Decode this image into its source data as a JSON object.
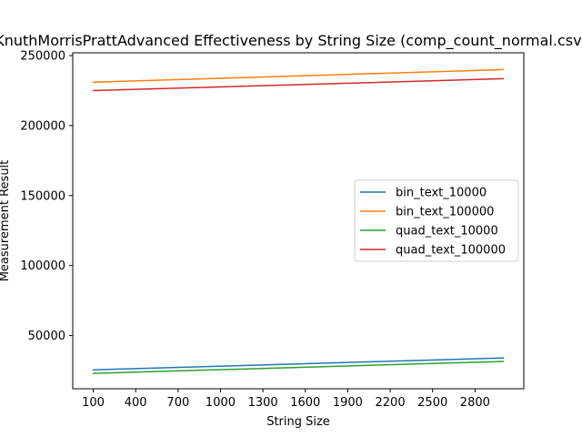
{
  "chart_data": {
    "type": "line",
    "title": "KnuthMorrisPrattAdvanced Effectiveness by String Size (comp_count_normal.csv)",
    "xlabel": "String Size",
    "ylabel": "Measurement Result",
    "x_ticks": [
      "100",
      "400",
      "700",
      "1000",
      "1300",
      "1600",
      "1900",
      "2200",
      "2500",
      "2800"
    ],
    "y_ticks": [
      "50000",
      "100000",
      "150000",
      "200000",
      "250000"
    ],
    "xlim": [
      -45,
      3145
    ],
    "ylim": [
      12000,
      252000
    ],
    "legend_position": "center-right",
    "series": [
      {
        "name": "bin_text_10000",
        "color": "#1f77b4",
        "x": [
          100,
          3000
        ],
        "values": [
          25500,
          34000
        ]
      },
      {
        "name": "bin_text_100000",
        "color": "#ff7f0e",
        "x": [
          100,
          3000
        ],
        "values": [
          231000,
          240000
        ]
      },
      {
        "name": "quad_text_10000",
        "color": "#2ca02c",
        "x": [
          100,
          3000
        ],
        "values": [
          23000,
          31500
        ]
      },
      {
        "name": "quad_text_100000",
        "color": "#d62728",
        "x": [
          100,
          3000
        ],
        "values": [
          225000,
          233500
        ]
      }
    ]
  }
}
